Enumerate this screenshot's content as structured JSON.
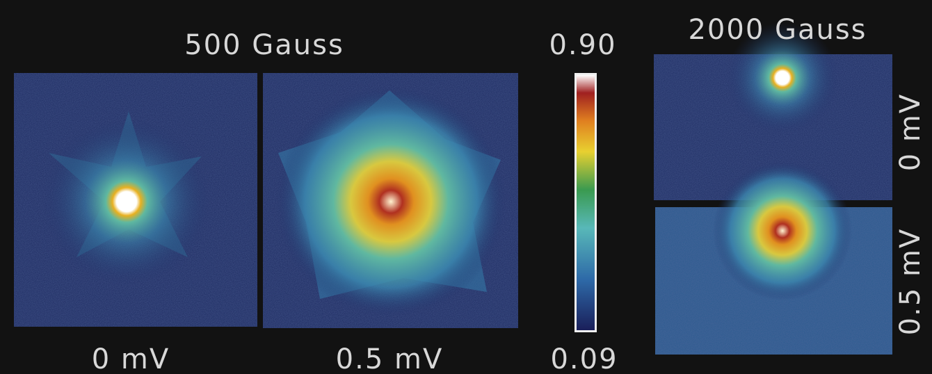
{
  "panels_500": {
    "title": "500 Gauss",
    "labels": [
      "0 mV",
      "0.5 mV"
    ]
  },
  "colorbar": {
    "max": "0.90",
    "min": "0.09"
  },
  "panels_2000": {
    "title": "2000 Gauss",
    "labels": [
      "0 mV",
      "0.5 mV"
    ]
  }
}
